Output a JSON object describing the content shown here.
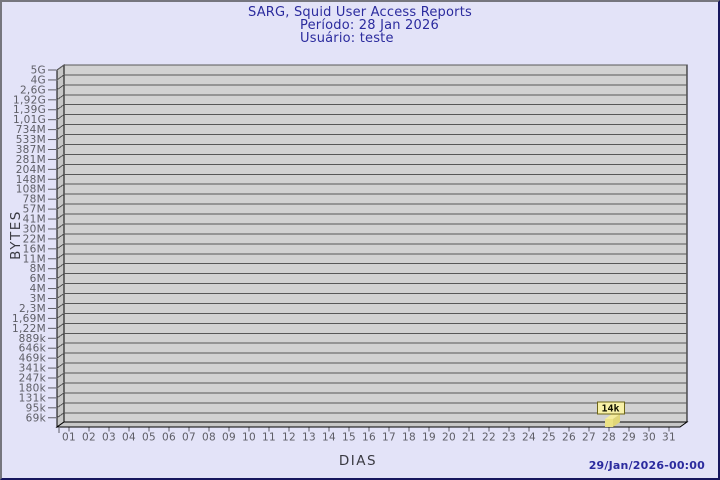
{
  "header": {
    "title": "SARG, Squid User Access Reports",
    "period": "Período: 28 Jan 2026",
    "user": "Usuário: teste"
  },
  "footer": {
    "generated": "29/Jan/2026-00:00"
  },
  "colors": {
    "accent_text": "#2b2b9e",
    "background": "#e3e3f8",
    "plot_band": "#d2d2d2",
    "wall": "#c7c7c7",
    "gridline": "#585858",
    "bar_fill": "#ece284",
    "bar_top": "#f4ec9c",
    "bar_side": "#e0d678",
    "value_label_bg": "#f8f1a8",
    "value_label_border": "#6e6618"
  },
  "chart_data": {
    "type": "bar",
    "title": "SARG, Squid User Access Reports",
    "subtitle": "Período: 28 Jan 2026",
    "user_line": "Usuário: teste",
    "xlabel": "DIAS",
    "ylabel": "BYTES",
    "x_tick_labels": [
      "01",
      "02",
      "03",
      "04",
      "05",
      "06",
      "07",
      "08",
      "09",
      "10",
      "11",
      "12",
      "13",
      "14",
      "15",
      "16",
      "17",
      "18",
      "19",
      "20",
      "21",
      "22",
      "23",
      "24",
      "25",
      "26",
      "27",
      "28",
      "29",
      "30",
      "31"
    ],
    "y_tick_labels": [
      "5G",
      "4G",
      "2,6G",
      "1,92G",
      "1,39G",
      "1,01G",
      "734M",
      "533M",
      "387M",
      "281M",
      "204M",
      "148M",
      "108M",
      "78M",
      "57M",
      "41M",
      "30M",
      "22M",
      "16M",
      "11M",
      "8M",
      "6M",
      "4M",
      "3M",
      "2,3M",
      "1,69M",
      "1,22M",
      "889k",
      "646k",
      "469k",
      "341k",
      "247k",
      "180k",
      "131k",
      "95k",
      "69k"
    ],
    "grid": true,
    "legend": "none",
    "bars": [
      {
        "day": "28",
        "value_label": "14k"
      }
    ],
    "footer_timestamp": "29/Jan/2026-00:00"
  }
}
